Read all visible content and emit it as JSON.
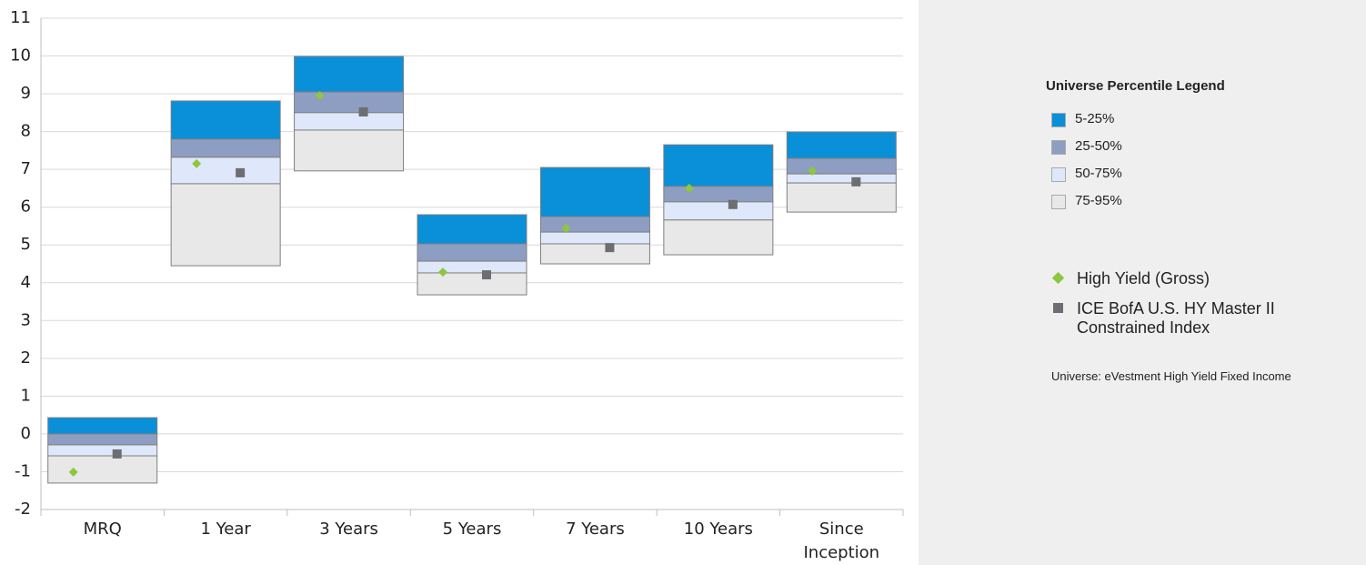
{
  "chart_data": {
    "type": "percentile-range",
    "categories": [
      "MRQ",
      "1 Year",
      "3 Years",
      "5 Years",
      "7 Years",
      "10 Years",
      "Since Inception"
    ],
    "ylim": [
      -2,
      11
    ],
    "yticks": [
      -2,
      -1,
      0,
      1,
      2,
      3,
      4,
      5,
      6,
      7,
      8,
      9,
      10,
      11
    ],
    "grid": true,
    "legend_title": "Universe Percentile Legend",
    "percentile_bands": [
      {
        "name": "5-25%",
        "color": "#0a8fd9"
      },
      {
        "name": "25-50%",
        "color": "#8e9ec2"
      },
      {
        "name": "50-75%",
        "color": "#dfe8fa"
      },
      {
        "name": "75-95%",
        "color": "#e8e8e8"
      }
    ],
    "percentile_bounds": [
      [
        0.43,
        8.81,
        9.99,
        5.8,
        7.05,
        7.65,
        7.99
      ],
      [
        0.0,
        7.8,
        9.05,
        5.03,
        5.75,
        6.55,
        7.29
      ],
      [
        -0.29,
        7.32,
        8.5,
        4.57,
        5.34,
        6.14,
        6.88
      ],
      [
        -0.58,
        6.62,
        8.04,
        4.26,
        5.03,
        5.66,
        6.64
      ],
      [
        -1.3,
        4.45,
        6.96,
        3.68,
        4.5,
        4.74,
        5.87
      ]
    ],
    "series": [
      {
        "name": "High Yield (Gross)",
        "color": "#8dc63f",
        "marker": "diamond",
        "values": [
          -1.01,
          7.15,
          8.95,
          4.28,
          5.44,
          6.5,
          6.96
        ]
      },
      {
        "name": "ICE BofA U.S. HY Master II Constrained Index",
        "color": "#6d6e71",
        "marker": "square",
        "values": [
          -0.53,
          6.91,
          8.52,
          4.21,
          4.93,
          6.07,
          6.67
        ]
      }
    ],
    "note": "Universe: eVestment High Yield Fixed Income"
  }
}
